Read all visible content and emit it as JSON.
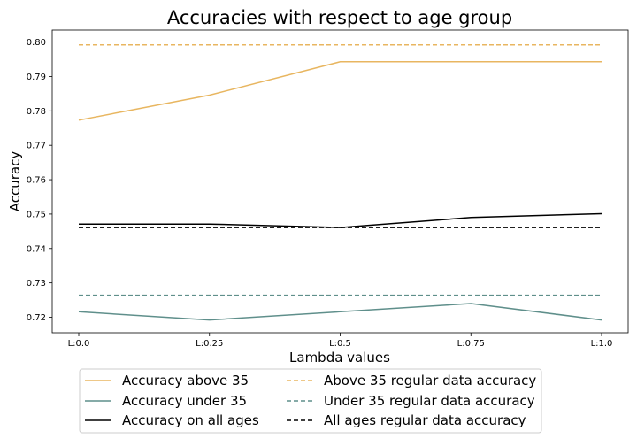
{
  "chart_data": {
    "type": "line",
    "title": "Accuracies with respect to age group",
    "xlabel": "Lambda values",
    "ylabel": "Accuracy",
    "categories": [
      "L:0.0",
      "L:0.25",
      "L:0.5",
      "L:0.75",
      "L:1.0"
    ],
    "ylim": [
      0.7155,
      0.8035
    ],
    "yticks": [
      0.72,
      0.73,
      0.74,
      0.75,
      0.76,
      0.77,
      0.78,
      0.79,
      0.8
    ],
    "ytick_labels": [
      "0.72",
      "0.73",
      "0.74",
      "0.75",
      "0.76",
      "0.77",
      "0.78",
      "0.79",
      "0.80"
    ],
    "grid": false,
    "legend_position": "bottom",
    "series": [
      {
        "name": "Accuracy above 35",
        "values": [
          0.7773,
          0.7846,
          0.7943,
          0.7943,
          0.7943
        ],
        "color": "#e8b660",
        "style": "solid"
      },
      {
        "name": "Accuracy under 35",
        "values": [
          0.7216,
          0.7192,
          0.7216,
          0.724,
          0.7192
        ],
        "color": "#5f8f8b",
        "style": "solid"
      },
      {
        "name": "Accuracy on all ages",
        "values": [
          0.7471,
          0.7471,
          0.7461,
          0.749,
          0.7501
        ],
        "color": "#000000",
        "style": "solid"
      },
      {
        "name": "Above 35 regular data accuracy",
        "values": [
          0.7992,
          0.7992,
          0.7992,
          0.7992,
          0.7992
        ],
        "color": "#e8b660",
        "style": "dashed"
      },
      {
        "name": "Under 35 regular data accuracy",
        "values": [
          0.7264,
          0.7264,
          0.7264,
          0.7264,
          0.7264
        ],
        "color": "#5f8f8b",
        "style": "dashed"
      },
      {
        "name": "All ages regular data accuracy",
        "values": [
          0.7461,
          0.7461,
          0.7461,
          0.7461,
          0.7461
        ],
        "color": "#000000",
        "style": "dashed"
      }
    ]
  }
}
